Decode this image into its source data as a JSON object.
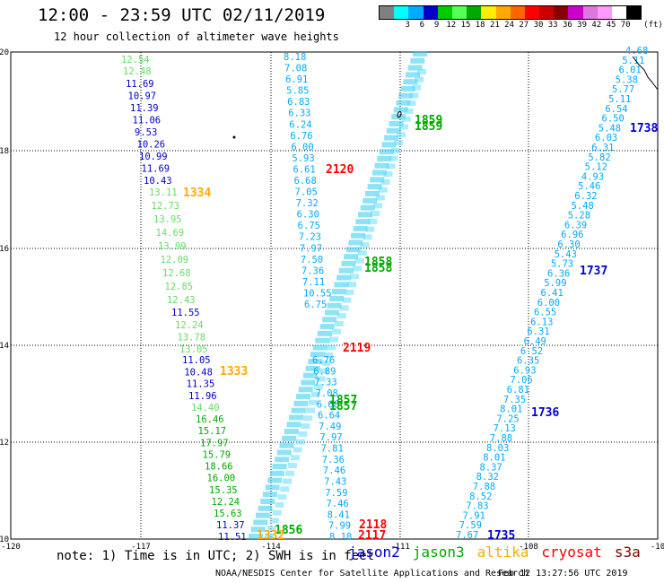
{
  "header": {
    "title": "12:00 - 23:59 UTC 02/11/2019",
    "subtitle": "12 hour collection of altimeter wave heights"
  },
  "legend": {
    "colors": [
      "#808080",
      "#00ffff",
      "#00aaff",
      "#0000cc",
      "#00cc00",
      "#55ff55",
      "#00aa00",
      "#ffee00",
      "#ffaa00",
      "#ff6600",
      "#ff0000",
      "#cc0000",
      "#880000",
      "#cc00cc",
      "#dd77dd",
      "#ff99ff",
      "#ffffff",
      "#000000"
    ],
    "labels": [
      "3",
      "6",
      "9",
      "12",
      "15",
      "18",
      "21",
      "24",
      "27",
      "30",
      "33",
      "36",
      "39",
      "42",
      "45",
      "70"
    ],
    "unit": "(ft)"
  },
  "axes": {
    "x_ticks": [
      "-120",
      "-117",
      "-114",
      "-111",
      "-108",
      "-10"
    ],
    "y_ticks": [
      "20",
      "18",
      "16",
      "14",
      "12",
      "10"
    ]
  },
  "tracks": [
    {
      "color": "#66dd66",
      "labels": [
        "12.54",
        "12.48"
      ]
    },
    {
      "color": "#0000cc",
      "labels": [
        "11.69",
        "10.97",
        "11.39",
        "11.06",
        "9.53",
        "10.26",
        "10.99",
        "11.69",
        "10.43"
      ]
    },
    {
      "color": "#66dd66",
      "labels": [
        "13.11",
        "12.73",
        "13.95",
        "14.69",
        "13.99",
        "12.09",
        "12.68",
        "12.85",
        "12.43"
      ]
    },
    {
      "color": "#0000cc",
      "labels": [
        "11.55"
      ]
    },
    {
      "color": "#66dd66",
      "labels": [
        "12.24",
        "13.78",
        "13.05"
      ]
    },
    {
      "color": "#0000cc",
      "labels": [
        "11.05",
        "10.48",
        "11.35",
        "11.96"
      ]
    },
    {
      "color": "#66dd66",
      "labels": [
        "14.40"
      ]
    },
    {
      "color": "#00aa00",
      "labels": [
        "16.46",
        "15.17",
        "17.97",
        "15.79",
        "18.66",
        "16.00",
        "15.35",
        "12.24",
        "15.63"
      ]
    },
    {
      "color": "#0000cc",
      "labels": [
        "11.37",
        "11.51"
      ]
    },
    {
      "color": "#00aaff",
      "labels": [
        "8.18",
        "7.08",
        "6.91",
        "5.85",
        "6.83",
        "6.33",
        "6.24",
        "6.76",
        "6.00",
        "5.93",
        "6.61",
        "6.68",
        "7.05",
        "7.32",
        "6.30",
        "6.75",
        "7.23",
        "7.97",
        "7.50",
        "7.36",
        "7.11",
        "10.55",
        "6.75"
      ]
    },
    {
      "color": "#00aaff",
      "labels": [
        "6.76",
        "6.89",
        "7.33",
        "7.08",
        "6.68",
        "6.64",
        "7.49",
        "7.97",
        "7.81",
        "7.36",
        "7.46",
        "7.43",
        "7.59",
        "7.46",
        "8.41",
        "7.99",
        "8.18"
      ]
    },
    {
      "color": "#00aaff",
      "labels": [
        "4.68",
        "5.11",
        "6.01",
        "5.38",
        "5.77",
        "5.11",
        "6.54",
        "6.50",
        "5.48",
        "6.03",
        "6.31",
        "5.82",
        "5.12",
        "4.93",
        "5.46",
        "6.32",
        "5.48",
        "5.28",
        "6.39",
        "6.96",
        "6.30",
        "5.43",
        "5.73",
        "6.36",
        "5.99",
        "6.41",
        "6.00",
        "6.55",
        "6.13",
        "6.31",
        "6.49",
        "6.52",
        "6.35",
        "6.93",
        "7.06",
        "6.81",
        "7.35",
        "8.01",
        "7.25",
        "7.13",
        "7.88",
        "8.03",
        "8.01",
        "8.37",
        "8.32",
        "7.88",
        "8.52",
        "7.83",
        "7.91",
        "7.59",
        "7.67"
      ]
    }
  ],
  "time_labels": [
    {
      "text": "1334",
      "color": "#ffaa00"
    },
    {
      "text": "1333",
      "color": "#ffaa00"
    },
    {
      "text": "2120",
      "color": "#ff0000"
    },
    {
      "text": "2119",
      "color": "#ff0000"
    },
    {
      "text": "2118",
      "color": "#ff0000"
    },
    {
      "text": "2117",
      "color": "#ff0000"
    },
    {
      "text": "1859",
      "color": "#00aa00"
    },
    {
      "text": "1859",
      "color": "#00aa00"
    },
    {
      "text": "1858",
      "color": "#00aa00"
    },
    {
      "text": "1858",
      "color": "#00aa00"
    },
    {
      "text": "1857",
      "color": "#00aa00"
    },
    {
      "text": "1857",
      "color": "#00aa00"
    },
    {
      "text": "1856",
      "color": "#00aa00"
    },
    {
      "text": "1332",
      "color": "#ffaa00"
    },
    {
      "text": "1738",
      "color": "#0000cc"
    },
    {
      "text": "1737",
      "color": "#0000cc"
    },
    {
      "text": "1736",
      "color": "#0000cc"
    },
    {
      "text": "1735",
      "color": "#0000cc"
    }
  ],
  "note": "note: 1) Time is in UTC; 2) SWH is in feet",
  "satellites": [
    {
      "name": "jason2",
      "color": "#0000cc"
    },
    {
      "name": "jason3",
      "color": "#00aa00"
    },
    {
      "name": "altika",
      "color": "#ffaa00"
    },
    {
      "name": "cryosat",
      "color": "#ff0000"
    },
    {
      "name": "s3a",
      "color": "#880000"
    }
  ],
  "footer": {
    "credit": "NOAA/NESDIS Center for Satellite Applications and Research",
    "timestamp": "Feb 12 13:27:56 UTC 2019"
  }
}
